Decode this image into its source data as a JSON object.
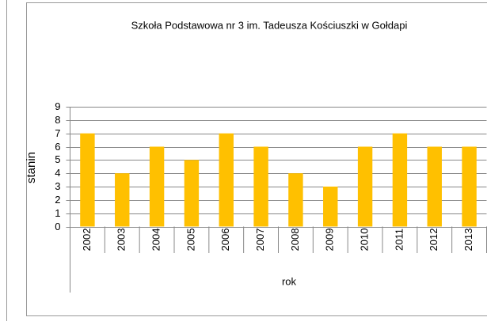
{
  "chart_data": {
    "type": "bar",
    "title": "Szkoła Podstawowa nr 3 im. Tadeusza Kościuszki w Gołdapi",
    "x_label": "rok",
    "y_label": "stanin",
    "categories": [
      "2002",
      "2003",
      "2004",
      "2005",
      "2006",
      "2007",
      "2008",
      "2009",
      "2010",
      "2011",
      "2012",
      "2013"
    ],
    "values": [
      7,
      4,
      6,
      5,
      7,
      6,
      4,
      3,
      6,
      7,
      6,
      6
    ],
    "color": "#ffc000",
    "ylim": [
      0,
      9
    ],
    "yticks": [
      0,
      1,
      2,
      3,
      4,
      5,
      6,
      7,
      8,
      9
    ],
    "grid": true
  }
}
